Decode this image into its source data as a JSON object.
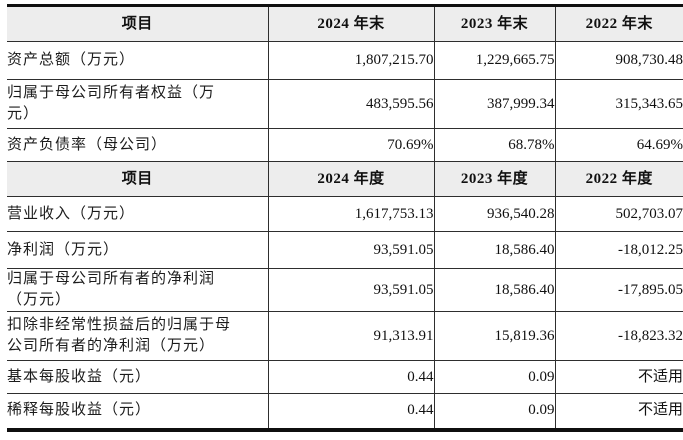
{
  "document": {
    "background": "#ffffff",
    "grid_line_color": "#2e2e2e",
    "outer_border_color": "#0f0f0f",
    "header_bg": "#ededed"
  },
  "table": {
    "header_end": {
      "item": "项目",
      "col_2024": "2024 年末",
      "col_2023": "2023 年末",
      "col_2022": "2022 年末"
    },
    "rows_end": [
      {
        "label": "资产总额（万元）",
        "v2024": "1,807,215.70",
        "v2023": "1,229,665.75",
        "v2022": "908,730.48"
      },
      {
        "label": "归属于母公司所有者权益（万\n元）",
        "v2024": "483,595.56",
        "v2023": "387,999.34",
        "v2022": "315,343.65"
      },
      {
        "label": "资产负债率（母公司）",
        "v2024": "70.69%",
        "v2023": "68.78%",
        "v2022": "64.69%"
      }
    ],
    "header_period": {
      "item": "项目",
      "col_2024": "2024 年度",
      "col_2023": "2023 年度",
      "col_2022": "2022 年度"
    },
    "rows_period": [
      {
        "label": "营业收入（万元）",
        "v2024": "1,617,753.13",
        "v2023": "936,540.28",
        "v2022": "502,703.07"
      },
      {
        "label": "净利润（万元）",
        "v2024": "93,591.05",
        "v2023": "18,586.40",
        "v2022": "-18,012.25"
      },
      {
        "label": "归属于母公司所有者的净利润\n（万元）",
        "v2024": "93,591.05",
        "v2023": "18,586.40",
        "v2022": "-17,895.05"
      },
      {
        "label": "扣除非经常性损益后的归属于母\n公司所有者的净利润（万元）",
        "v2024": "91,313.91",
        "v2023": "15,819.36",
        "v2022": "-18,823.32"
      },
      {
        "label": "基本每股收益（元）",
        "v2024": "0.44",
        "v2023": "0.09",
        "v2022": "不适用"
      },
      {
        "label": "稀释每股收益（元）",
        "v2024": "0.44",
        "v2023": "0.09",
        "v2022": "不适用"
      }
    ]
  }
}
